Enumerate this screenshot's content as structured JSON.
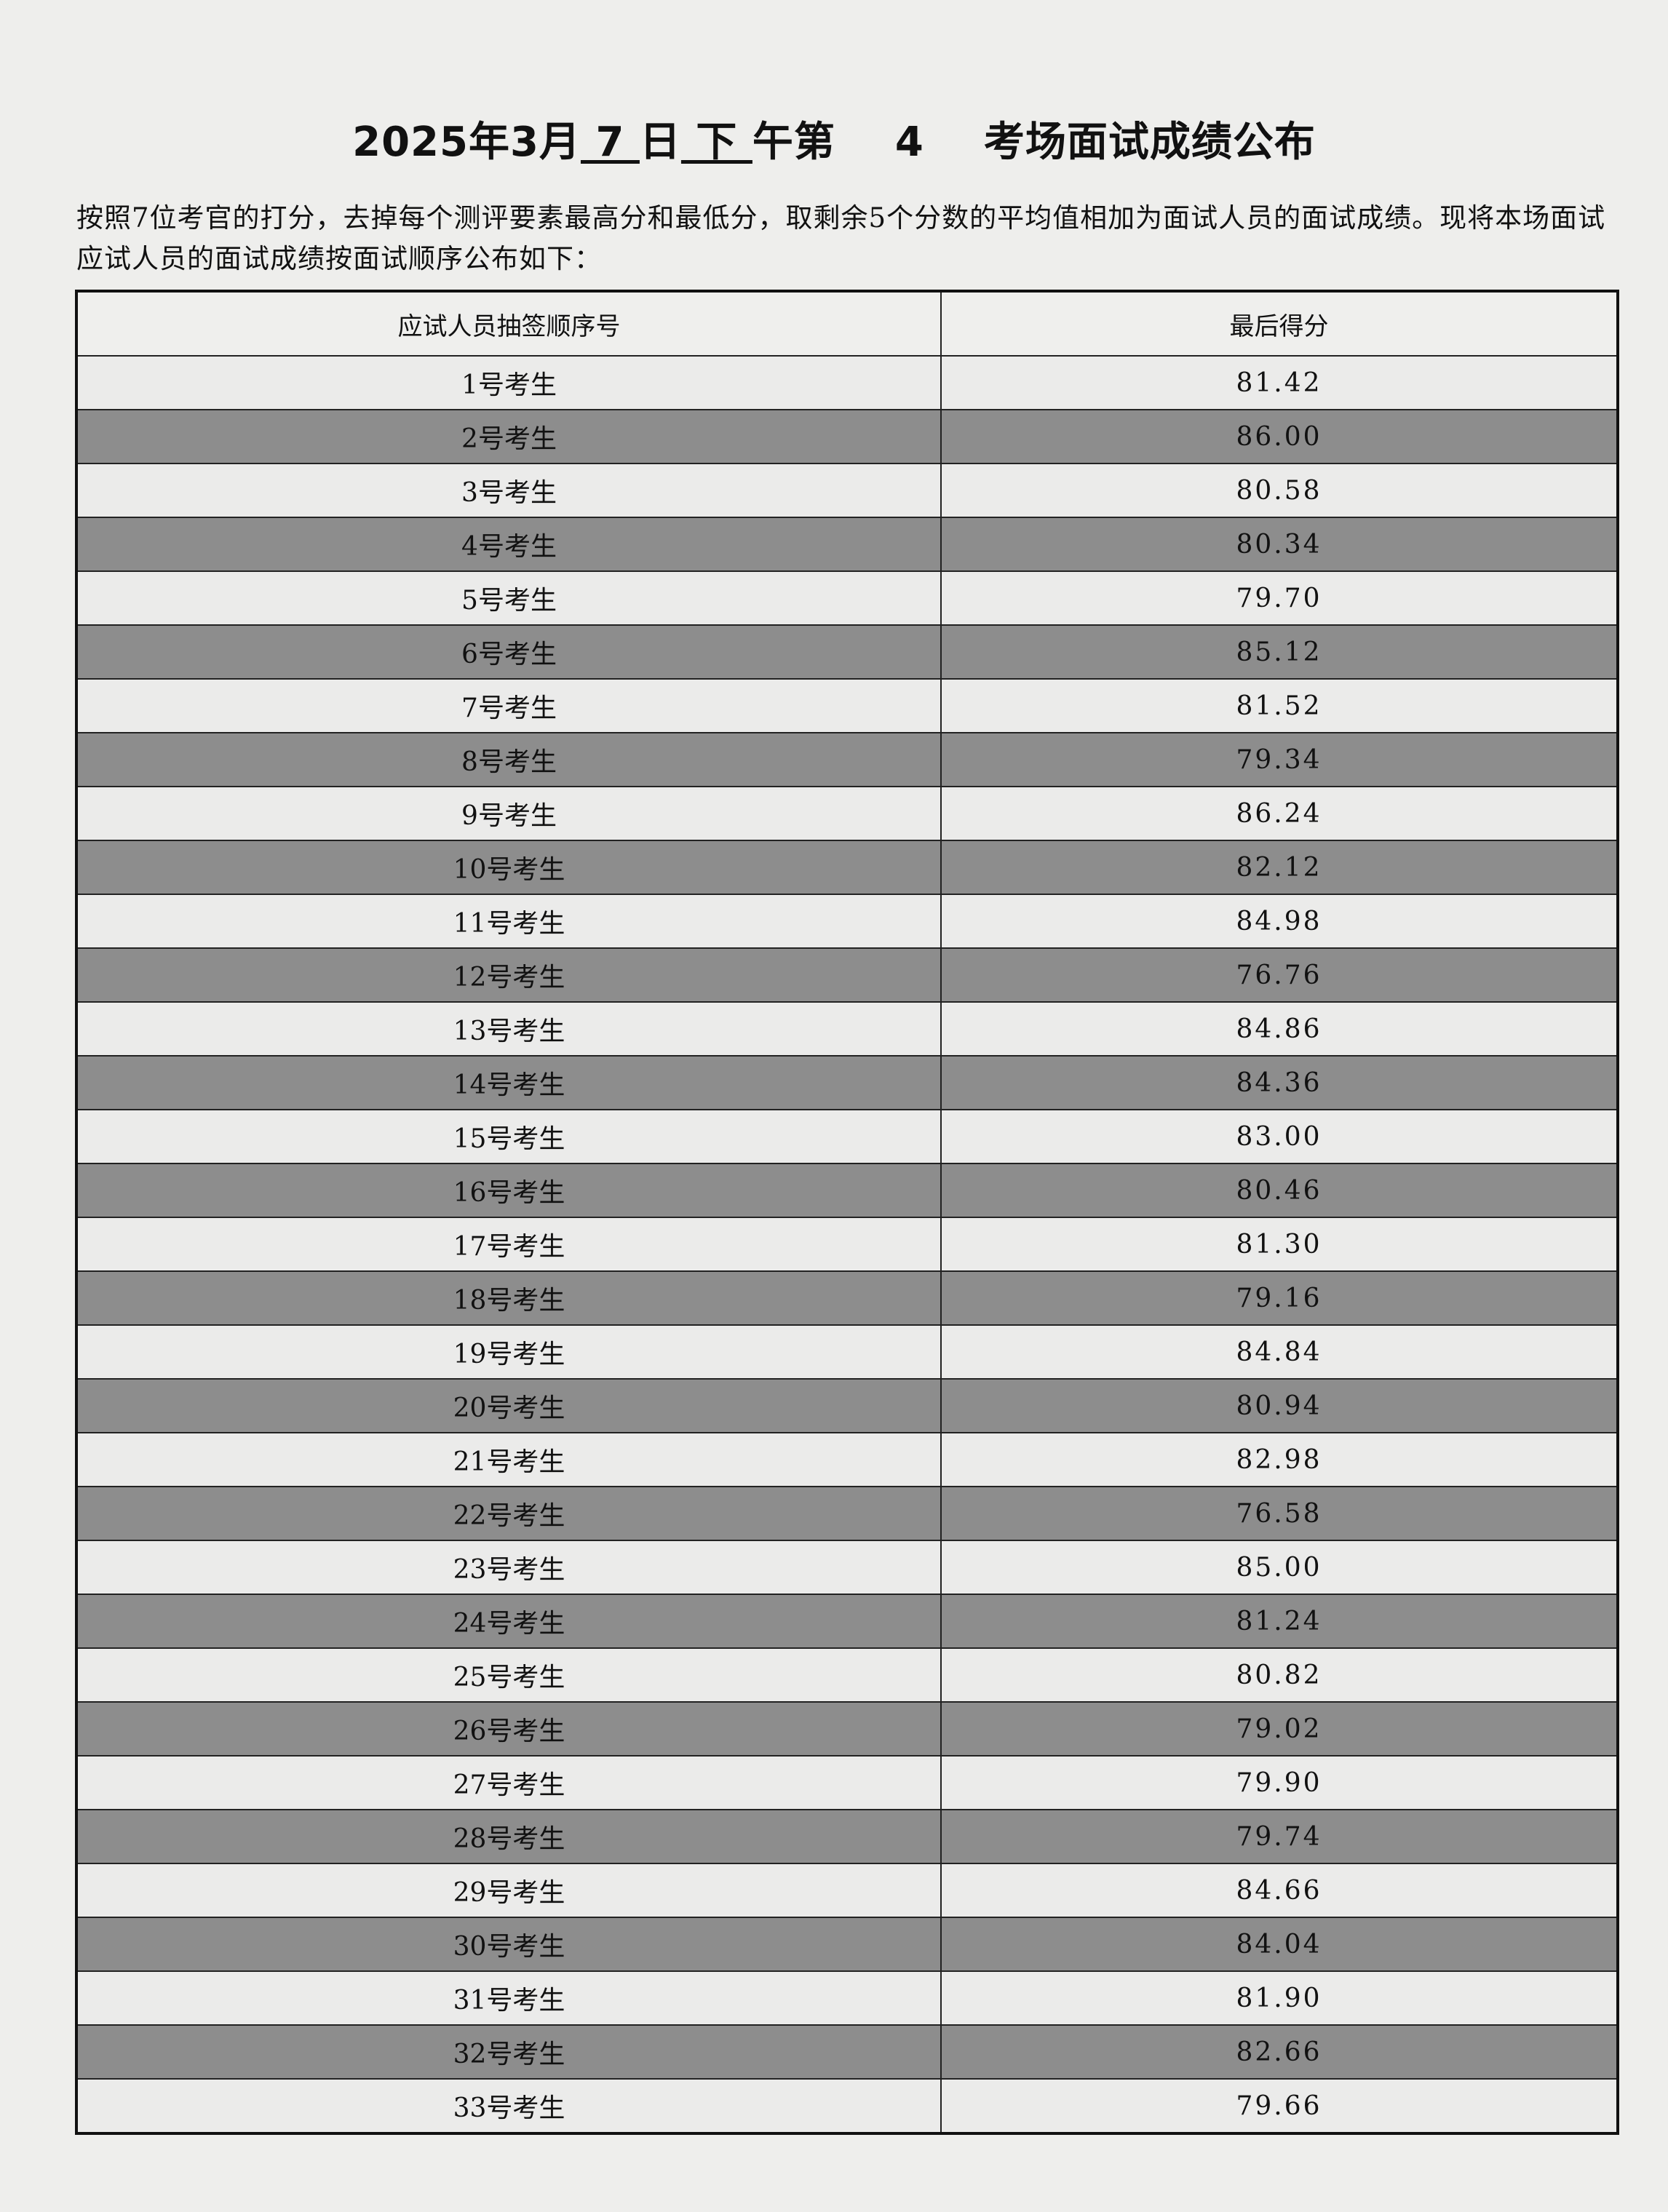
{
  "title": {
    "prefix": "2025年3月",
    "day": " 7 ",
    "mid1": "日",
    "period": " 下 ",
    "mid2": "午第    ",
    "room": "4",
    "suffix": "    考场面试成绩公布"
  },
  "intro": "按照7位考官的打分，去掉每个测评要素最高分和最低分，取剩余5个分数的平均值相加为面试人员的面试成绩。现将本场面试应试人员的面试成绩按面试顺序公布如下：",
  "table": {
    "headers": [
      "应试人员抽签顺序号",
      "最后得分"
    ],
    "rows": [
      [
        "1号考生",
        "81.42"
      ],
      [
        "2号考生",
        "86.00"
      ],
      [
        "3号考生",
        "80.58"
      ],
      [
        "4号考生",
        "80.34"
      ],
      [
        "5号考生",
        "79.70"
      ],
      [
        "6号考生",
        "85.12"
      ],
      [
        "7号考生",
        "81.52"
      ],
      [
        "8号考生",
        "79.34"
      ],
      [
        "9号考生",
        "86.24"
      ],
      [
        "10号考生",
        "82.12"
      ],
      [
        "11号考生",
        "84.98"
      ],
      [
        "12号考生",
        "76.76"
      ],
      [
        "13号考生",
        "84.86"
      ],
      [
        "14号考生",
        "84.36"
      ],
      [
        "15号考生",
        "83.00"
      ],
      [
        "16号考生",
        "80.46"
      ],
      [
        "17号考生",
        "81.30"
      ],
      [
        "18号考生",
        "79.16"
      ],
      [
        "19号考生",
        "84.84"
      ],
      [
        "20号考生",
        "80.94"
      ],
      [
        "21号考生",
        "82.98"
      ],
      [
        "22号考生",
        "76.58"
      ],
      [
        "23号考生",
        "85.00"
      ],
      [
        "24号考生",
        "81.24"
      ],
      [
        "25号考生",
        "80.82"
      ],
      [
        "26号考生",
        "79.02"
      ],
      [
        "27号考生",
        "79.90"
      ],
      [
        "28号考生",
        "79.74"
      ],
      [
        "29号考生",
        "84.66"
      ],
      [
        "30号考生",
        "84.04"
      ],
      [
        "31号考生",
        "81.90"
      ],
      [
        "32号考生",
        "82.66"
      ],
      [
        "33号考生",
        "79.66"
      ]
    ]
  },
  "colors": {
    "row_light": "#ebebea",
    "row_dark": "#8d8d8d",
    "page": "#eeeeec"
  }
}
